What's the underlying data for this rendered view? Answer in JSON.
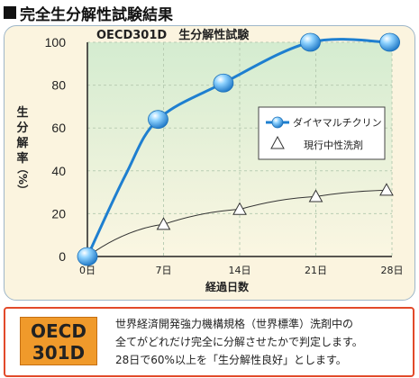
{
  "heading": "完全生分解性試験結果",
  "chart_data": {
    "type": "line",
    "title": "OECD301D　生分解性試験",
    "ylabel": [
      "生",
      "分",
      "解",
      "率",
      "（%）"
    ],
    "xlabel": "経過日数",
    "categories": [
      "0日",
      "7日",
      "14日",
      "21日",
      "28日"
    ],
    "x": [
      0,
      7,
      14,
      21,
      28
    ],
    "ylim": [
      0,
      100
    ],
    "yticks": [
      0,
      20,
      40,
      60,
      80,
      100
    ],
    "grid": true,
    "legend_position": "right",
    "series": [
      {
        "name": "ダイヤマルチクリン",
        "marker": "sphere",
        "color": "#1e7fd0",
        "x": [
          0,
          3.5,
          6.5,
          12.5,
          20.5,
          27.8
        ],
        "values": [
          0,
          38,
          64,
          81,
          100,
          100
        ],
        "markers_at": [
          0,
          6.5,
          12.5,
          20.5,
          27.8
        ]
      },
      {
        "name": "現行中性洗剤",
        "marker": "triangle",
        "color": "#333333",
        "x": [
          0,
          7,
          14,
          21,
          27.5
        ],
        "values": [
          0,
          15,
          22,
          28,
          31
        ]
      }
    ]
  },
  "info": {
    "badge_line1": "OECD",
    "badge_line2": "301D",
    "lines": [
      "世界経済開発強力機構規格（世界標準）洗剤中の",
      "全てがどれだけ完全に分解させたかで判定します。",
      "28日で60%以上を「生分解性良好」とします。"
    ]
  }
}
